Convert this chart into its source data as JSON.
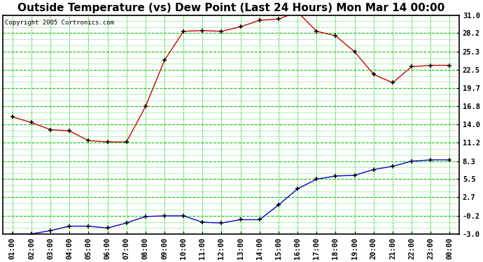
{
  "title": "Outside Temperature (vs) Dew Point (Last 24 Hours) Mon Mar 14 00:00",
  "copyright": "Copyright 2005 Curtronics.com",
  "x_labels": [
    "01:00",
    "02:00",
    "03:00",
    "04:00",
    "05:00",
    "06:00",
    "07:00",
    "08:00",
    "09:00",
    "10:00",
    "11:00",
    "12:00",
    "13:00",
    "14:00",
    "15:00",
    "16:00",
    "17:00",
    "18:00",
    "19:00",
    "20:00",
    "21:00",
    "22:00",
    "23:00",
    "00:00"
  ],
  "temp_values": [
    15.2,
    14.3,
    13.2,
    13.0,
    11.5,
    11.3,
    11.3,
    16.8,
    24.0,
    28.5,
    28.6,
    28.5,
    29.2,
    30.2,
    30.4,
    31.5,
    28.5,
    27.8,
    25.3,
    21.8,
    20.5,
    23.0,
    23.2,
    23.2
  ],
  "dew_values": [
    -3.0,
    -3.0,
    -2.5,
    -1.8,
    -1.8,
    -2.1,
    -1.3,
    -0.3,
    -0.2,
    -0.2,
    -1.2,
    -1.3,
    -0.8,
    -0.8,
    1.5,
    4.0,
    5.5,
    6.0,
    6.1,
    7.0,
    7.5,
    8.3,
    8.5,
    8.5
  ],
  "temp_color": "#cc0000",
  "dew_color": "#0000cc",
  "bg_color": "#ffffff",
  "grid_color": "#00cc00",
  "grid_minor_color": "#00cc00",
  "marker": "+",
  "marker_color": "#000000",
  "yticks": [
    31.0,
    28.2,
    25.3,
    22.5,
    19.7,
    16.8,
    14.0,
    11.2,
    8.3,
    5.5,
    2.7,
    -0.2,
    -3.0
  ],
  "ylim": [
    -3.0,
    31.0
  ],
  "title_fontsize": 11,
  "tick_fontsize": 7.5
}
